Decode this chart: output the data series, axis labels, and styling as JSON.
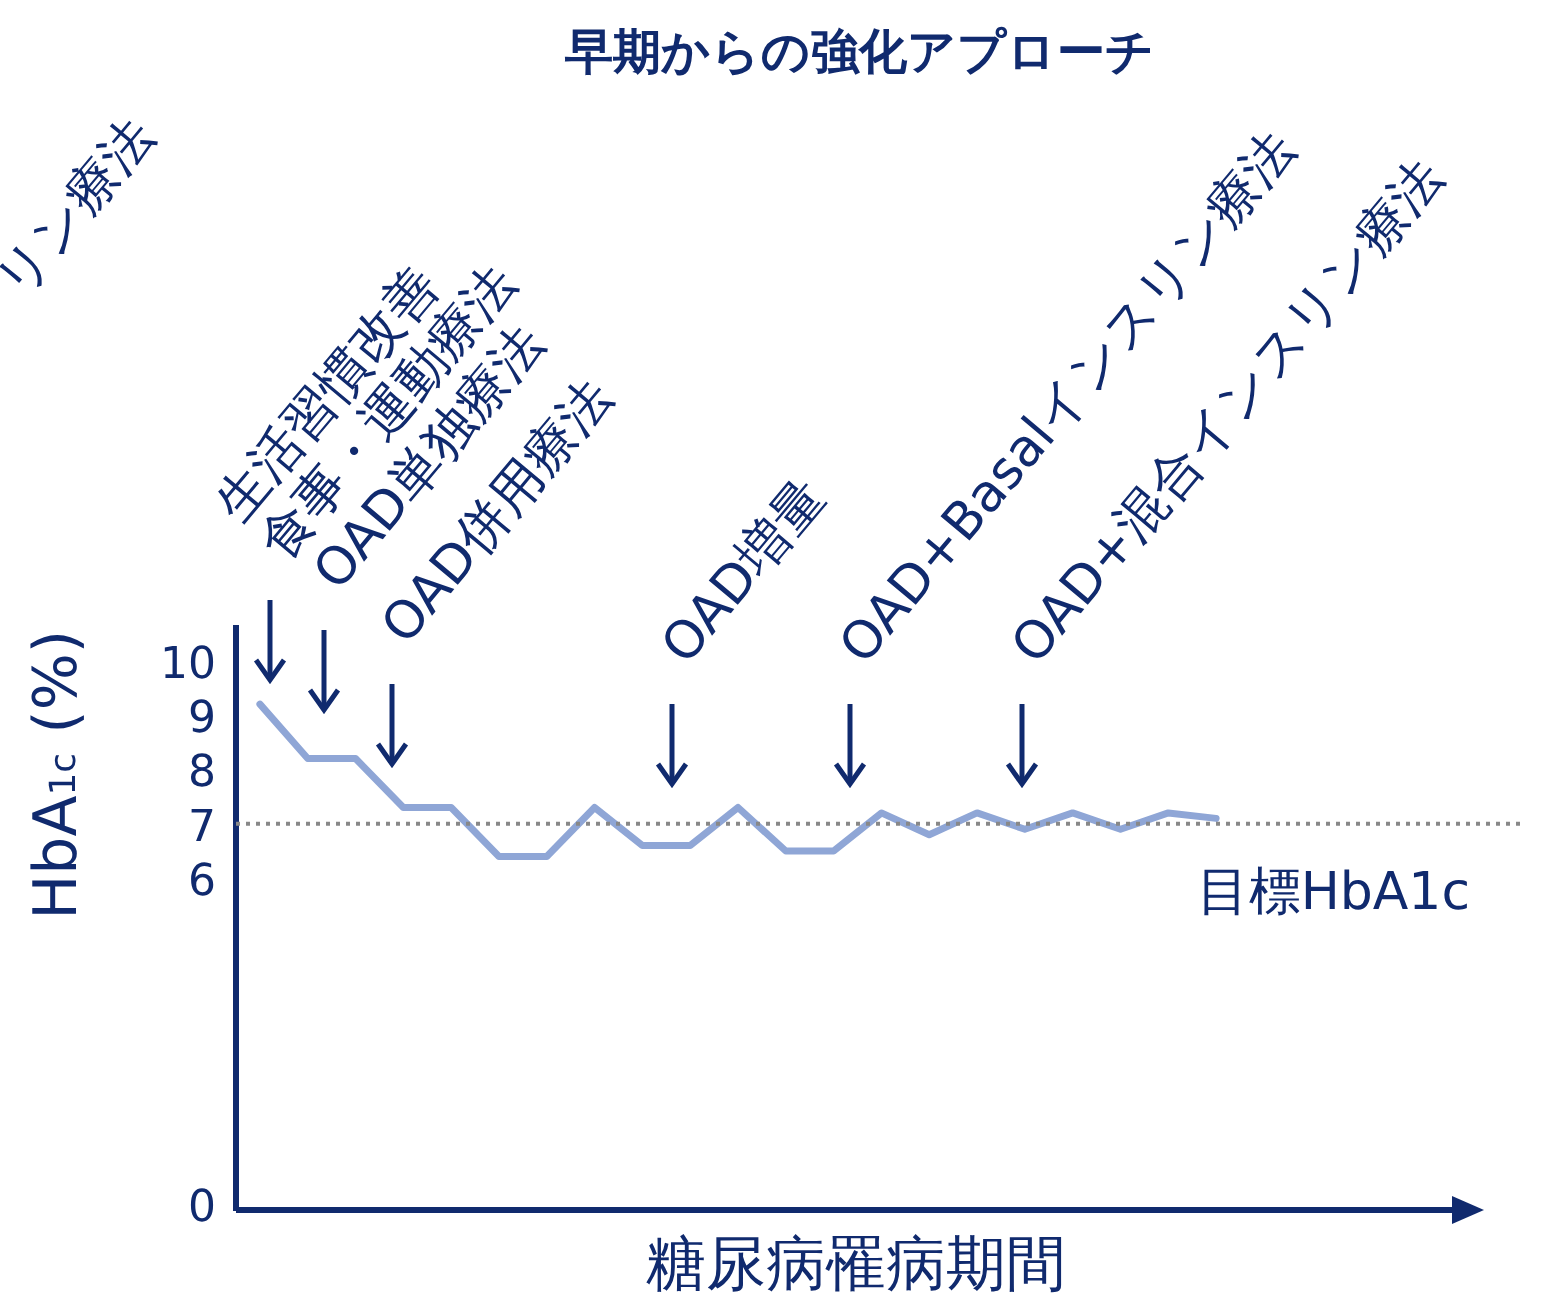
{
  "chart_data": {
    "type": "line",
    "title": "早期からの強化アプローチ",
    "xlabel": "糖尿病罹病期間",
    "ylabel": "HbA$_{1c}$ (%)",
    "categories": [
      null,
      null,
      null,
      null,
      null,
      null,
      null,
      null,
      null,
      null,
      null,
      null,
      null,
      null,
      null,
      null,
      null,
      null,
      null,
      null,
      null
    ],
    "series": [
      {
        "color": "#8fa6d6",
        "values": [
          9.3,
          8.3,
          8.3,
          7.4,
          7.4,
          6.5,
          6.5,
          7.4,
          6.7,
          6.7,
          7.4,
          6.6,
          6.6,
          7.3,
          6.9,
          7.3,
          7.0,
          7.3,
          7.0,
          7.3,
          7.2
        ]
      }
    ],
    "ylim": [
      0,
      10.7
    ],
    "yticks": [
      0,
      6,
      7,
      8,
      9,
      10
    ],
    "tick_labels": "y",
    "grid": false,
    "legend": false,
    "marker": "none",
    "line_style": "solid",
    "ref_lines": [
      {
        "axis": "y",
        "value": 7.1,
        "label": "目標HbA1c",
        "color": "#888888",
        "line_style": "dotted"
      }
    ],
    "annotations": [
      "生活習慣改善\n食事・運動療法",
      "OAD単独療法",
      "OAD併用療法",
      "OAD増量",
      "OAD+Basalインスリン療法",
      "OAD+混合インスリン療法",
      "リン療法"
    ]
  }
}
